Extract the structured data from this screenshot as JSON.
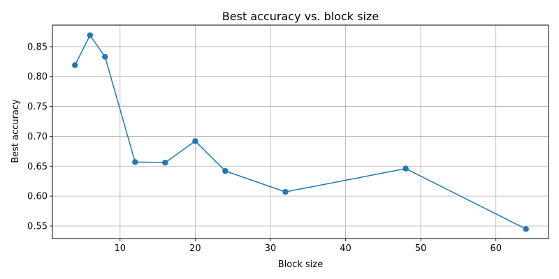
{
  "chart_data": {
    "type": "line",
    "title": "Best accuracy vs. block size",
    "xlabel": "Block size",
    "ylabel": "Best accuracy",
    "xlim": [
      1,
      67
    ],
    "ylim": [
      0.529,
      0.886
    ],
    "xticks": [
      10,
      20,
      30,
      40,
      50,
      60
    ],
    "yticks": [
      0.55,
      0.6,
      0.65,
      0.7,
      0.75,
      0.8,
      0.85
    ],
    "ytick_labels": [
      "0.55",
      "0.60",
      "0.65",
      "0.70",
      "0.75",
      "0.80",
      "0.85"
    ],
    "grid": true,
    "series": [
      {
        "x": [
          4,
          6,
          8,
          12,
          16,
          20,
          24,
          32,
          48,
          64
        ],
        "y": [
          0.819,
          0.869,
          0.833,
          0.657,
          0.656,
          0.692,
          0.642,
          0.607,
          0.646,
          0.545
        ],
        "color": "#1f77b4",
        "marker": "circle"
      }
    ]
  }
}
